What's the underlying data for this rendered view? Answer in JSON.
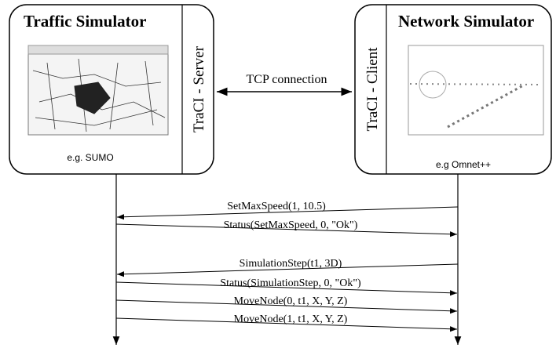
{
  "left_box": {
    "title": "Traffic Simulator",
    "side_label": "TraCI - Server",
    "example": "e.g. SUMO"
  },
  "right_box": {
    "title": "Network Simulator",
    "side_label": "TraCI - Client",
    "example": "e.g Omnet++"
  },
  "connection": {
    "label": "TCP connection"
  },
  "messages": [
    {
      "label": "SetMaxSpeed(1, 10.5)"
    },
    {
      "label": "Status(SetMaxSpeed, 0, \"Ok\")"
    },
    {
      "label": "SimulationStep(t1, 3D)"
    },
    {
      "label": "Status(SimulationStep, 0, \"Ok\")"
    },
    {
      "label": "MoveNode(0, t1, X, Y, Z)"
    },
    {
      "label": "MoveNode(1, t1, X, Y, Z)"
    }
  ]
}
